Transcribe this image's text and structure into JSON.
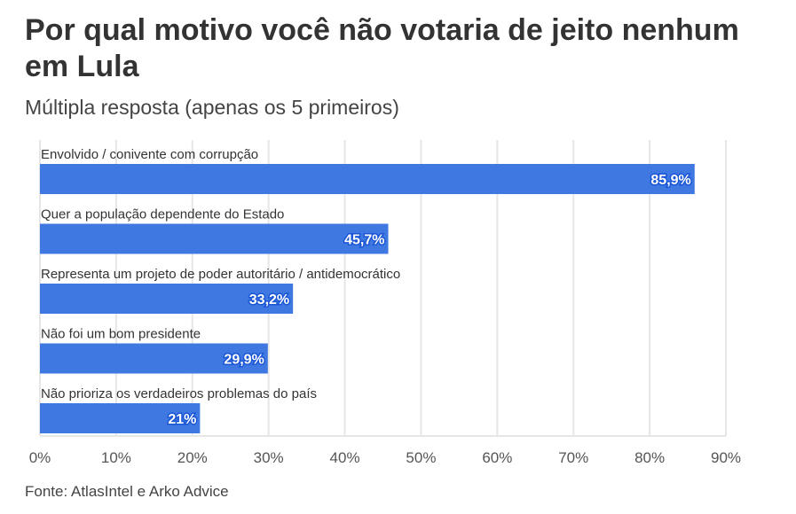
{
  "chart_data": {
    "type": "bar",
    "orientation": "horizontal",
    "title": "Por qual motivo você não votaria de jeito nenhum em Lula",
    "subtitle": "Múltipla resposta (apenas os 5 primeiros)",
    "categories": [
      "Envolvido / conivente com corrupção",
      "Quer a população dependente do Estado",
      "Representa um projeto de poder autoritário / antidemocrático",
      "Não foi um bom presidente",
      "Não prioriza os verdadeiros problemas do país"
    ],
    "values": [
      85.9,
      45.7,
      33.2,
      29.9,
      21
    ],
    "value_labels": [
      "85,9%",
      "45,7%",
      "33,2%",
      "29,9%",
      "21%"
    ],
    "xlim": [
      0,
      90
    ],
    "xticks": [
      0,
      10,
      20,
      30,
      40,
      50,
      60,
      70,
      80,
      90
    ],
    "xtick_labels": [
      "0%",
      "10%",
      "20%",
      "30%",
      "40%",
      "50%",
      "60%",
      "70%",
      "80%",
      "90%"
    ],
    "grid": true,
    "bar_color": "#3f78e0",
    "source": "Fonte: AtlasIntel e Arko Advice"
  }
}
